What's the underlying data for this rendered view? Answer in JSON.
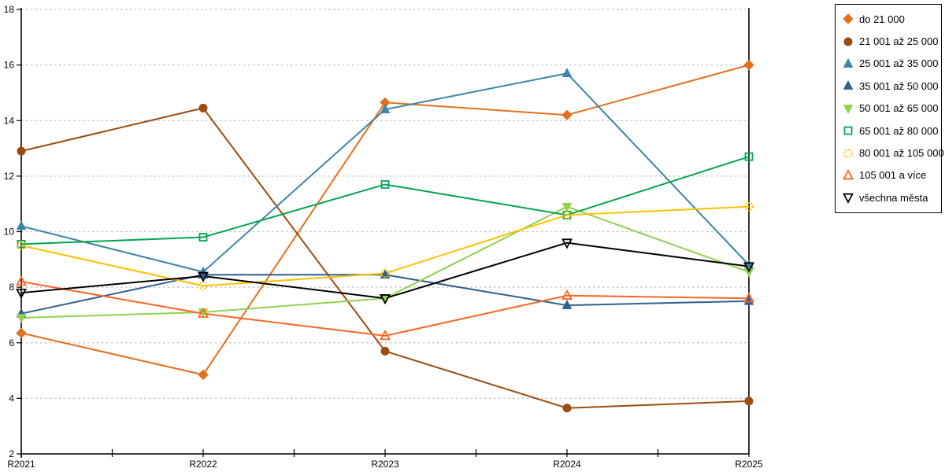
{
  "chart_data": {
    "type": "line",
    "title": "",
    "xlabel": "",
    "ylabel": "",
    "categories": [
      "R2021",
      "R2022",
      "R2023",
      "R2024",
      "R2025"
    ],
    "series": [
      {
        "name": "do 21 000",
        "color": "#E2711D",
        "marker": "diamond",
        "marker_style": "filled",
        "values": [
          6.35,
          4.85,
          14.65,
          14.2,
          16.0
        ]
      },
      {
        "name": "21 001 až 25 000",
        "color": "#9A4D10",
        "marker": "circle",
        "marker_style": "filled",
        "values": [
          12.9,
          14.45,
          5.7,
          3.65,
          3.9
        ]
      },
      {
        "name": "25 001 až 35 000",
        "color": "#3B86A3",
        "marker": "triangle-up",
        "marker_style": "filled",
        "values": [
          10.2,
          8.55,
          14.4,
          15.7,
          8.8
        ]
      },
      {
        "name": "35 001 až 50 000",
        "color": "#2F6090",
        "marker": "triangle-up",
        "marker_style": "filled",
        "values": [
          7.05,
          8.45,
          8.45,
          7.35,
          7.5
        ]
      },
      {
        "name": "50 001 až 65 000",
        "color": "#92D050",
        "marker": "triangle-down",
        "marker_style": "filled",
        "values": [
          6.9,
          7.1,
          7.6,
          10.9,
          8.55
        ]
      },
      {
        "name": "65 001 až 80 000",
        "color": "#00A550",
        "marker": "square",
        "marker_style": "open",
        "values": [
          9.55,
          9.8,
          11.7,
          10.6,
          12.7
        ]
      },
      {
        "name": "80 001 až 105 000",
        "color": "#FFC000",
        "marker": "circle",
        "marker_style": "open-dashed",
        "values": [
          9.5,
          8.05,
          8.5,
          10.6,
          10.9
        ]
      },
      {
        "name": "105 001 a více",
        "color": "#FB6520",
        "marker": "triangle-up",
        "marker_style": "open",
        "values": [
          8.2,
          7.05,
          6.25,
          7.7,
          7.6
        ]
      },
      {
        "name": "všechna města",
        "color": "#000000",
        "marker": "triangle-down",
        "marker_style": "open",
        "values": [
          7.8,
          8.4,
          7.6,
          9.6,
          8.75
        ]
      }
    ],
    "ylim": [
      2,
      18
    ],
    "ytick_step": 2,
    "y_tick_labels": [
      "2",
      "4",
      "6",
      "8",
      "10",
      "12",
      "14",
      "16",
      "18"
    ],
    "grid": "horizontal-dashed",
    "grid_color": "#BFBFBF",
    "axis_color": "#000000",
    "background": "#FFFFFF",
    "legend_position": "right"
  }
}
